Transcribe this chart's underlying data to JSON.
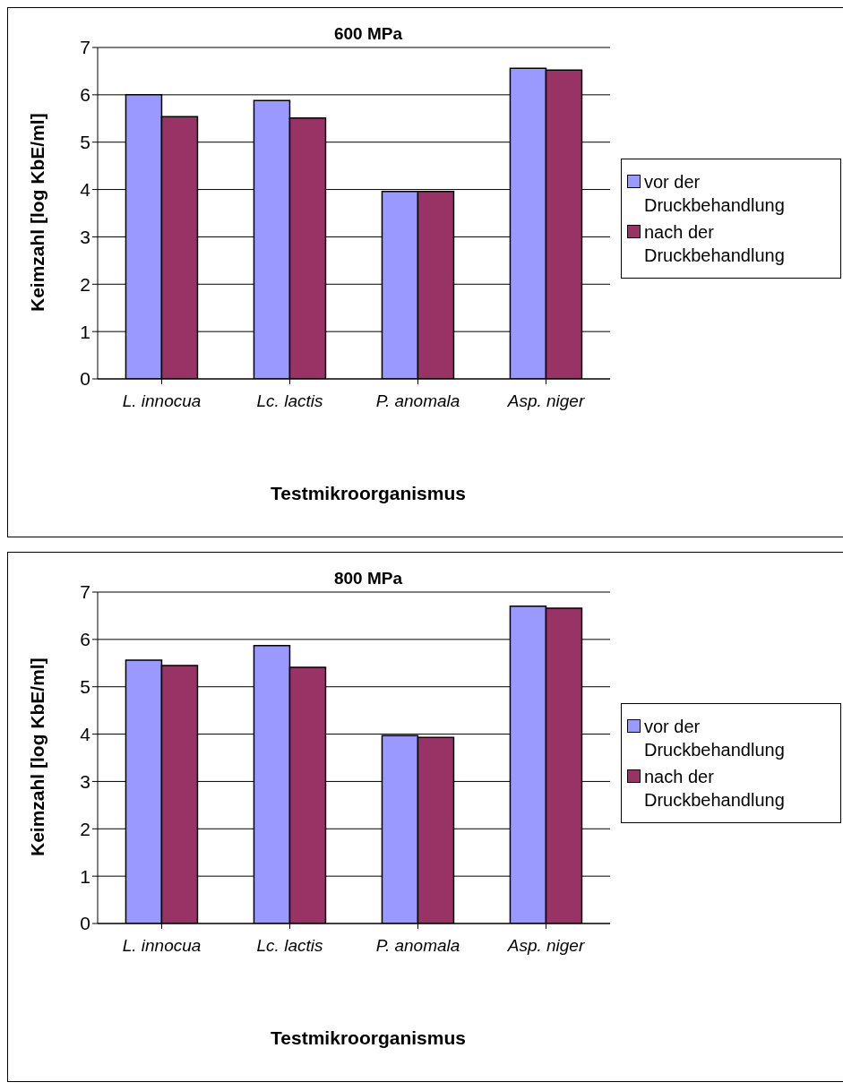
{
  "chart_data": [
    {
      "type": "bar",
      "title": "600 MPa",
      "xlabel": "Testmikroorganismus",
      "ylabel": "Keimzahl [log KbE/ml]",
      "categories": [
        "L. innocua",
        "Lc. lactis",
        "P. anomala",
        "Asp. niger"
      ],
      "series": [
        {
          "name": "vor der Druckbehandlung",
          "color": "#9999ff",
          "values": [
            6.0,
            5.88,
            3.96,
            6.56
          ]
        },
        {
          "name": "nach der Druckbehandlung",
          "color": "#993366",
          "values": [
            5.54,
            5.51,
            3.96,
            6.52
          ]
        }
      ],
      "ylim": [
        0,
        7
      ],
      "yticks": [
        0,
        1,
        2,
        3,
        4,
        5,
        6,
        7
      ],
      "grid": "y",
      "legend": "right"
    },
    {
      "type": "bar",
      "title": "800 MPa",
      "xlabel": "Testmikroorganismus",
      "ylabel": "Keimzahl [log KbE/ml]",
      "categories": [
        "L. innocua",
        "Lc. lactis",
        "P. anomala",
        "Asp. niger"
      ],
      "series": [
        {
          "name": "vor der Druckbehandlung",
          "color": "#9999ff",
          "values": [
            5.56,
            5.87,
            3.97,
            6.7
          ]
        },
        {
          "name": "nach der Druckbehandlung",
          "color": "#993366",
          "values": [
            5.45,
            5.41,
            3.93,
            6.66
          ]
        }
      ],
      "ylim": [
        0,
        7
      ],
      "yticks": [
        0,
        1,
        2,
        3,
        4,
        5,
        6,
        7
      ],
      "grid": "y",
      "legend": "right"
    }
  ]
}
